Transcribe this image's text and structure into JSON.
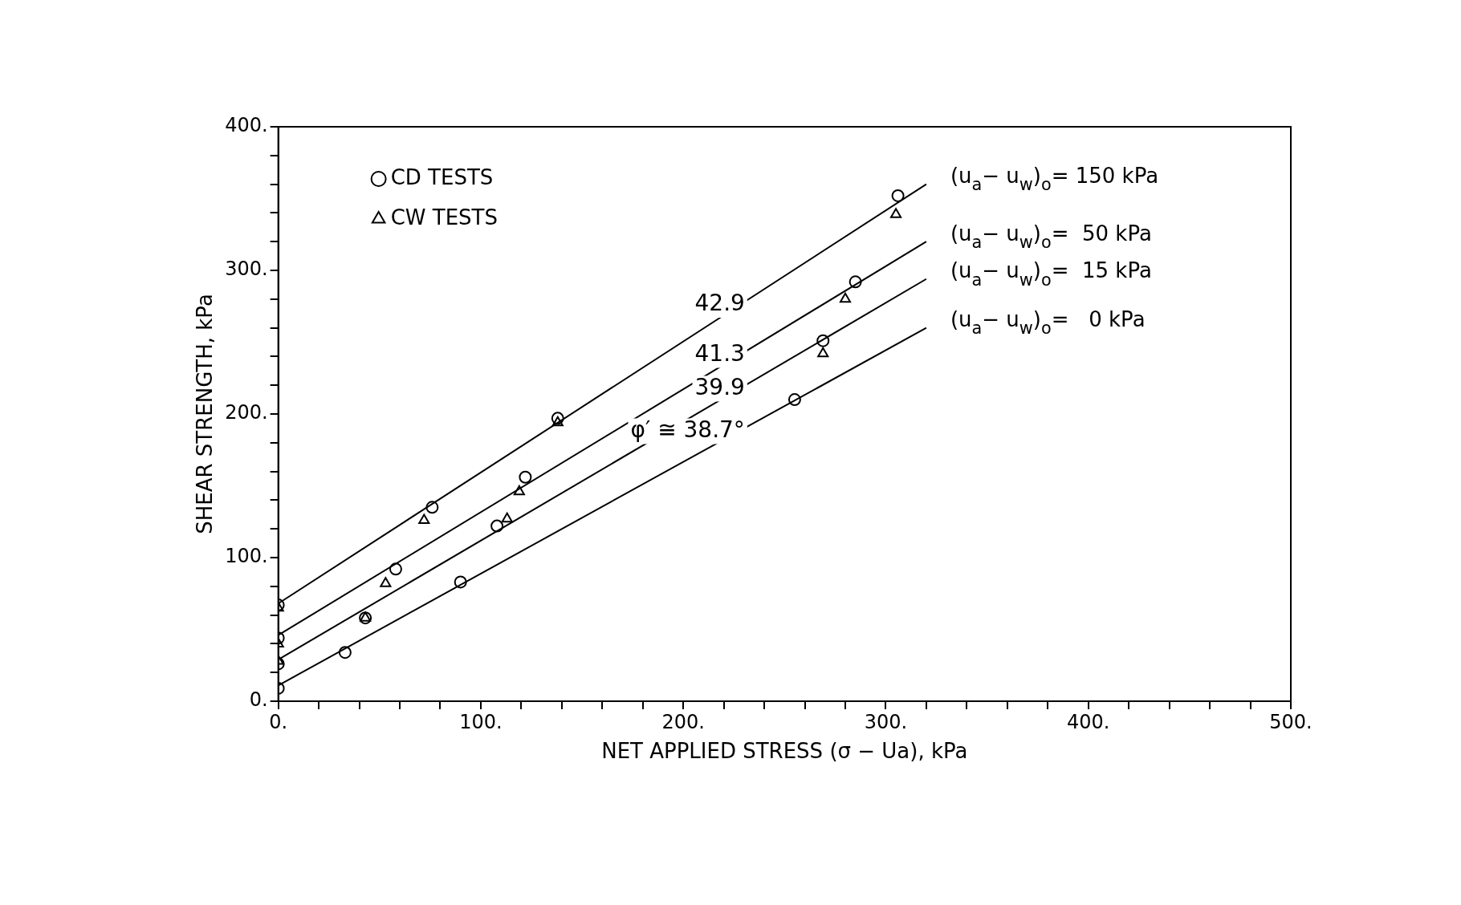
{
  "chart_data": {
    "type": "scatter",
    "xlabel": "NET APPLIED STRESS (σ − Ua), kPa",
    "ylabel": "SHEAR STRENGTH, kPa",
    "xlim": [
      0,
      500
    ],
    "ylim": [
      0,
      400
    ],
    "xticks": [
      {
        "value": 0,
        "label": "0."
      },
      {
        "value": 20,
        "label": null
      },
      {
        "value": 40,
        "label": null
      },
      {
        "value": 60,
        "label": null
      },
      {
        "value": 80,
        "label": null
      },
      {
        "value": 100,
        "label": "100."
      },
      {
        "value": 120,
        "label": null
      },
      {
        "value": 140,
        "label": null
      },
      {
        "value": 160,
        "label": null
      },
      {
        "value": 180,
        "label": null
      },
      {
        "value": 200,
        "label": "200."
      },
      {
        "value": 220,
        "label": null
      },
      {
        "value": 240,
        "label": null
      },
      {
        "value": 260,
        "label": null
      },
      {
        "value": 280,
        "label": null
      },
      {
        "value": 300,
        "label": "300."
      },
      {
        "value": 320,
        "label": null
      },
      {
        "value": 340,
        "label": null
      },
      {
        "value": 360,
        "label": null
      },
      {
        "value": 380,
        "label": null
      },
      {
        "value": 400,
        "label": "400."
      },
      {
        "value": 420,
        "label": null
      },
      {
        "value": 440,
        "label": null
      },
      {
        "value": 460,
        "label": null
      },
      {
        "value": 480,
        "label": null
      },
      {
        "value": 500,
        "label": "500."
      }
    ],
    "yticks": [
      {
        "value": 0,
        "label": "0."
      },
      {
        "value": 20,
        "label": null
      },
      {
        "value": 40,
        "label": null
      },
      {
        "value": 60,
        "label": null
      },
      {
        "value": 80,
        "label": null
      },
      {
        "value": 100,
        "label": "100."
      },
      {
        "value": 120,
        "label": null
      },
      {
        "value": 140,
        "label": null
      },
      {
        "value": 160,
        "label": null
      },
      {
        "value": 180,
        "label": null
      },
      {
        "value": 200,
        "label": "200."
      },
      {
        "value": 220,
        "label": null
      },
      {
        "value": 240,
        "label": null
      },
      {
        "value": 260,
        "label": null
      },
      {
        "value": 280,
        "label": null
      },
      {
        "value": 300,
        "label": "300."
      },
      {
        "value": 320,
        "label": null
      },
      {
        "value": 340,
        "label": null
      },
      {
        "value": 360,
        "label": null
      },
      {
        "value": 380,
        "label": null
      },
      {
        "value": 400,
        "label": "400."
      }
    ],
    "grid": false,
    "legend": "top left",
    "series": [
      {
        "name": "CD TESTS",
        "marker": "circle",
        "color": "#000000",
        "x": [
          0,
          0,
          0,
          0,
          33,
          43,
          58,
          76,
          90,
          108,
          122,
          138,
          255,
          269,
          285,
          306
        ],
        "values": [
          67,
          44,
          26,
          9,
          34,
          58,
          92,
          135,
          83,
          122,
          156,
          197,
          210,
          251,
          292,
          352
        ]
      },
      {
        "name": "CW TESTS",
        "marker": "triangle",
        "color": "#000000",
        "x": [
          0,
          0,
          0,
          43,
          53,
          72,
          113,
          119,
          138,
          269,
          280,
          305
        ],
        "values": [
          65,
          40,
          28,
          58,
          82,
          126,
          127,
          146,
          194,
          242,
          280,
          339
        ]
      },
      {
        "name": "(u$_{a}$− u$_{w}$)$_{o}$= 150 kPa",
        "type": "line",
        "marker": "none",
        "color": "#000000",
        "x": [
          0,
          320
        ],
        "values": [
          68,
          360
        ]
      },
      {
        "name": "(u$_{a}$− u$_{w}$)$_{o}$=  50 kPa",
        "type": "line",
        "marker": "none",
        "color": "#000000",
        "x": [
          0,
          320
        ],
        "values": [
          46,
          320
        ]
      },
      {
        "name": "(u$_{a}$− u$_{w}$)$_{o}$=  15 kPa",
        "type": "line",
        "marker": "none",
        "color": "#000000",
        "x": [
          0,
          320
        ],
        "values": [
          29,
          294
        ]
      },
      {
        "name": "(u$_{a}$− u$_{w}$)$_{o}$=   0 kPa",
        "type": "line",
        "marker": "none",
        "color": "#000000",
        "x": [
          0,
          320
        ],
        "values": [
          11,
          260
        ]
      }
    ],
    "annotations": [
      "42.9",
      "41.3",
      "39.9",
      "φ′ ≅ 38.7°"
    ]
  }
}
